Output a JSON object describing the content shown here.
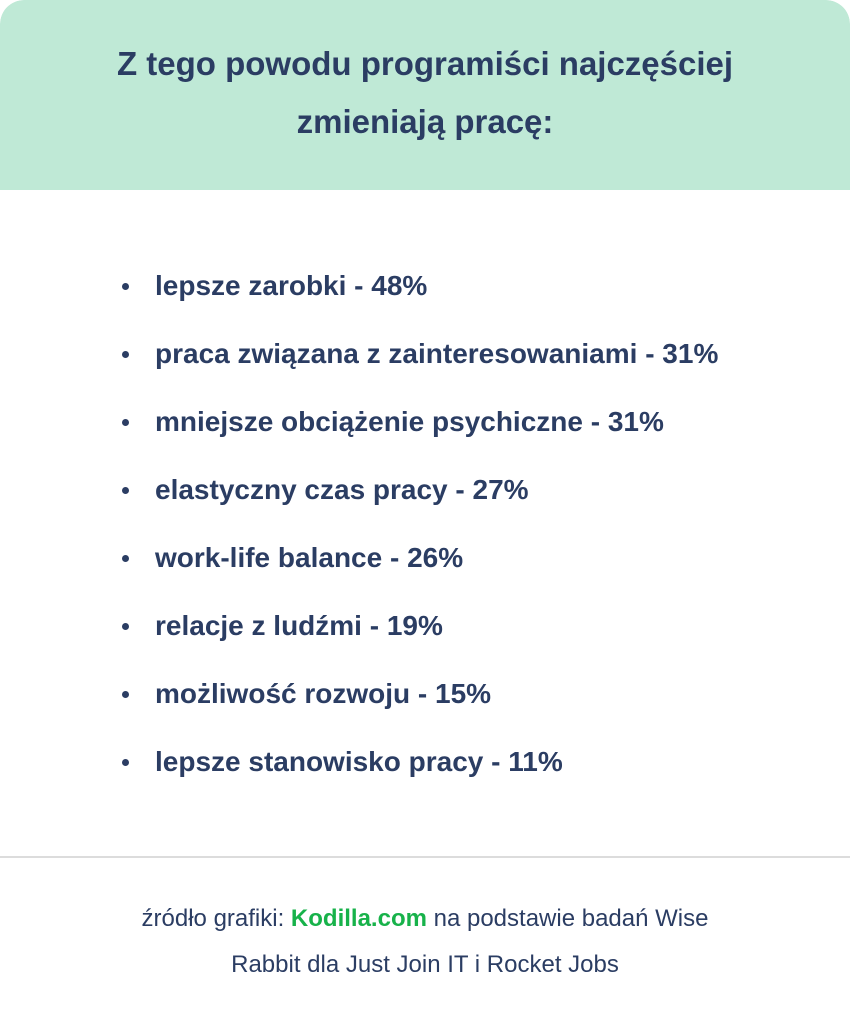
{
  "header": {
    "title": "Z tego powodu programiści najczęściej zmieniają pracę:"
  },
  "reasons": [
    "lepsze zarobki - 48%",
    "praca związana z zainteresowaniami - 31%",
    "mniejsze obciążenie psychiczne - 31%",
    "elastyczny czas pracy - 27%",
    "work-life balance - 26%",
    "relacje z ludźmi - 19%",
    "możliwość rozwoju - 15%",
    "lepsze stanowisko pracy - 11%"
  ],
  "footer": {
    "prefix": "źródło grafiki: ",
    "brand": "Kodilla.com",
    "suffix_line1": " na podstawie badań Wise",
    "suffix_line2": "Rabbit dla Just Join IT i Rocket Jobs"
  },
  "colors": {
    "header_bg": "#bfe9d6",
    "text": "#2b3d63",
    "brand": "#17b24a"
  }
}
